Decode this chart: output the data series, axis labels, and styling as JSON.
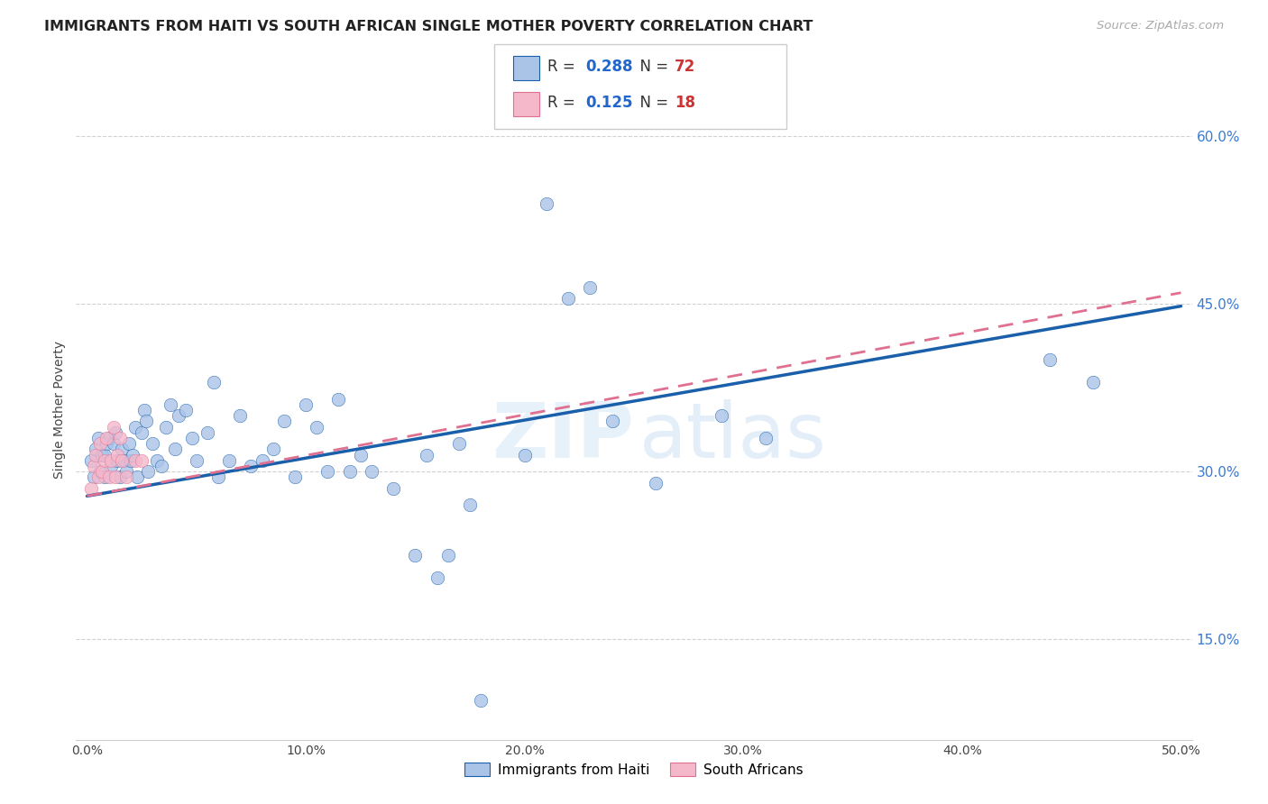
{
  "title": "IMMIGRANTS FROM HAITI VS SOUTH AFRICAN SINGLE MOTHER POVERTY CORRELATION CHART",
  "source": "Source: ZipAtlas.com",
  "ylabel": "Single Mother Poverty",
  "yticks": [
    0.15,
    0.3,
    0.45,
    0.6
  ],
  "ytick_labels": [
    "15.0%",
    "30.0%",
    "45.0%",
    "60.0%"
  ],
  "xticks": [
    0.0,
    0.1,
    0.2,
    0.3,
    0.4,
    0.5
  ],
  "xtick_labels": [
    "0.0%",
    "10.0%",
    "20.0%",
    "30.0%",
    "40.0%",
    "50.0%"
  ],
  "xlim": [
    -0.005,
    0.505
  ],
  "ylim": [
    0.06,
    0.65
  ],
  "legend1_label": "Immigrants from Haiti",
  "legend2_label": "South Africans",
  "R1": "0.288",
  "N1": "72",
  "R2": "0.125",
  "N2": "18",
  "color_haiti": "#aac4e8",
  "color_sa": "#f5b8cb",
  "line_haiti": "#1a5faa",
  "line_sa": "#e07090",
  "watermark": "ZIPAtlas",
  "haiti_x": [
    0.002,
    0.003,
    0.004,
    0.005,
    0.006,
    0.007,
    0.008,
    0.008,
    0.009,
    0.01,
    0.011,
    0.012,
    0.013,
    0.014,
    0.015,
    0.016,
    0.017,
    0.018,
    0.019,
    0.02,
    0.021,
    0.022,
    0.023,
    0.025,
    0.026,
    0.027,
    0.028,
    0.03,
    0.032,
    0.034,
    0.036,
    0.038,
    0.04,
    0.042,
    0.045,
    0.048,
    0.05,
    0.055,
    0.058,
    0.06,
    0.065,
    0.07,
    0.075,
    0.08,
    0.085,
    0.09,
    0.095,
    0.1,
    0.105,
    0.11,
    0.115,
    0.12,
    0.125,
    0.13,
    0.14,
    0.15,
    0.155,
    0.16,
    0.165,
    0.17,
    0.175,
    0.18,
    0.2,
    0.21,
    0.22,
    0.23,
    0.24,
    0.26,
    0.29,
    0.31,
    0.44,
    0.46
  ],
  "haiti_y": [
    0.31,
    0.295,
    0.32,
    0.33,
    0.3,
    0.315,
    0.315,
    0.295,
    0.325,
    0.33,
    0.305,
    0.325,
    0.335,
    0.31,
    0.295,
    0.32,
    0.31,
    0.3,
    0.325,
    0.31,
    0.315,
    0.34,
    0.295,
    0.335,
    0.355,
    0.345,
    0.3,
    0.325,
    0.31,
    0.305,
    0.34,
    0.36,
    0.32,
    0.35,
    0.355,
    0.33,
    0.31,
    0.335,
    0.38,
    0.295,
    0.31,
    0.35,
    0.305,
    0.31,
    0.32,
    0.345,
    0.295,
    0.36,
    0.34,
    0.3,
    0.365,
    0.3,
    0.315,
    0.3,
    0.285,
    0.225,
    0.315,
    0.205,
    0.225,
    0.325,
    0.27,
    0.095,
    0.315,
    0.54,
    0.455,
    0.465,
    0.345,
    0.29,
    0.35,
    0.33,
    0.4,
    0.38
  ],
  "sa_x": [
    0.002,
    0.003,
    0.004,
    0.005,
    0.006,
    0.007,
    0.008,
    0.009,
    0.01,
    0.011,
    0.012,
    0.013,
    0.014,
    0.015,
    0.016,
    0.018,
    0.022,
    0.025
  ],
  "sa_y": [
    0.285,
    0.305,
    0.315,
    0.295,
    0.325,
    0.3,
    0.31,
    0.33,
    0.295,
    0.31,
    0.34,
    0.295,
    0.315,
    0.33,
    0.31,
    0.295,
    0.31,
    0.31
  ],
  "line_haiti_x0": 0.0,
  "line_haiti_y0": 0.278,
  "line_haiti_x1": 0.5,
  "line_haiti_y1": 0.448,
  "line_sa_x0": 0.0,
  "line_sa_y0": 0.278,
  "line_sa_x1": 0.5,
  "line_sa_y1": 0.46
}
